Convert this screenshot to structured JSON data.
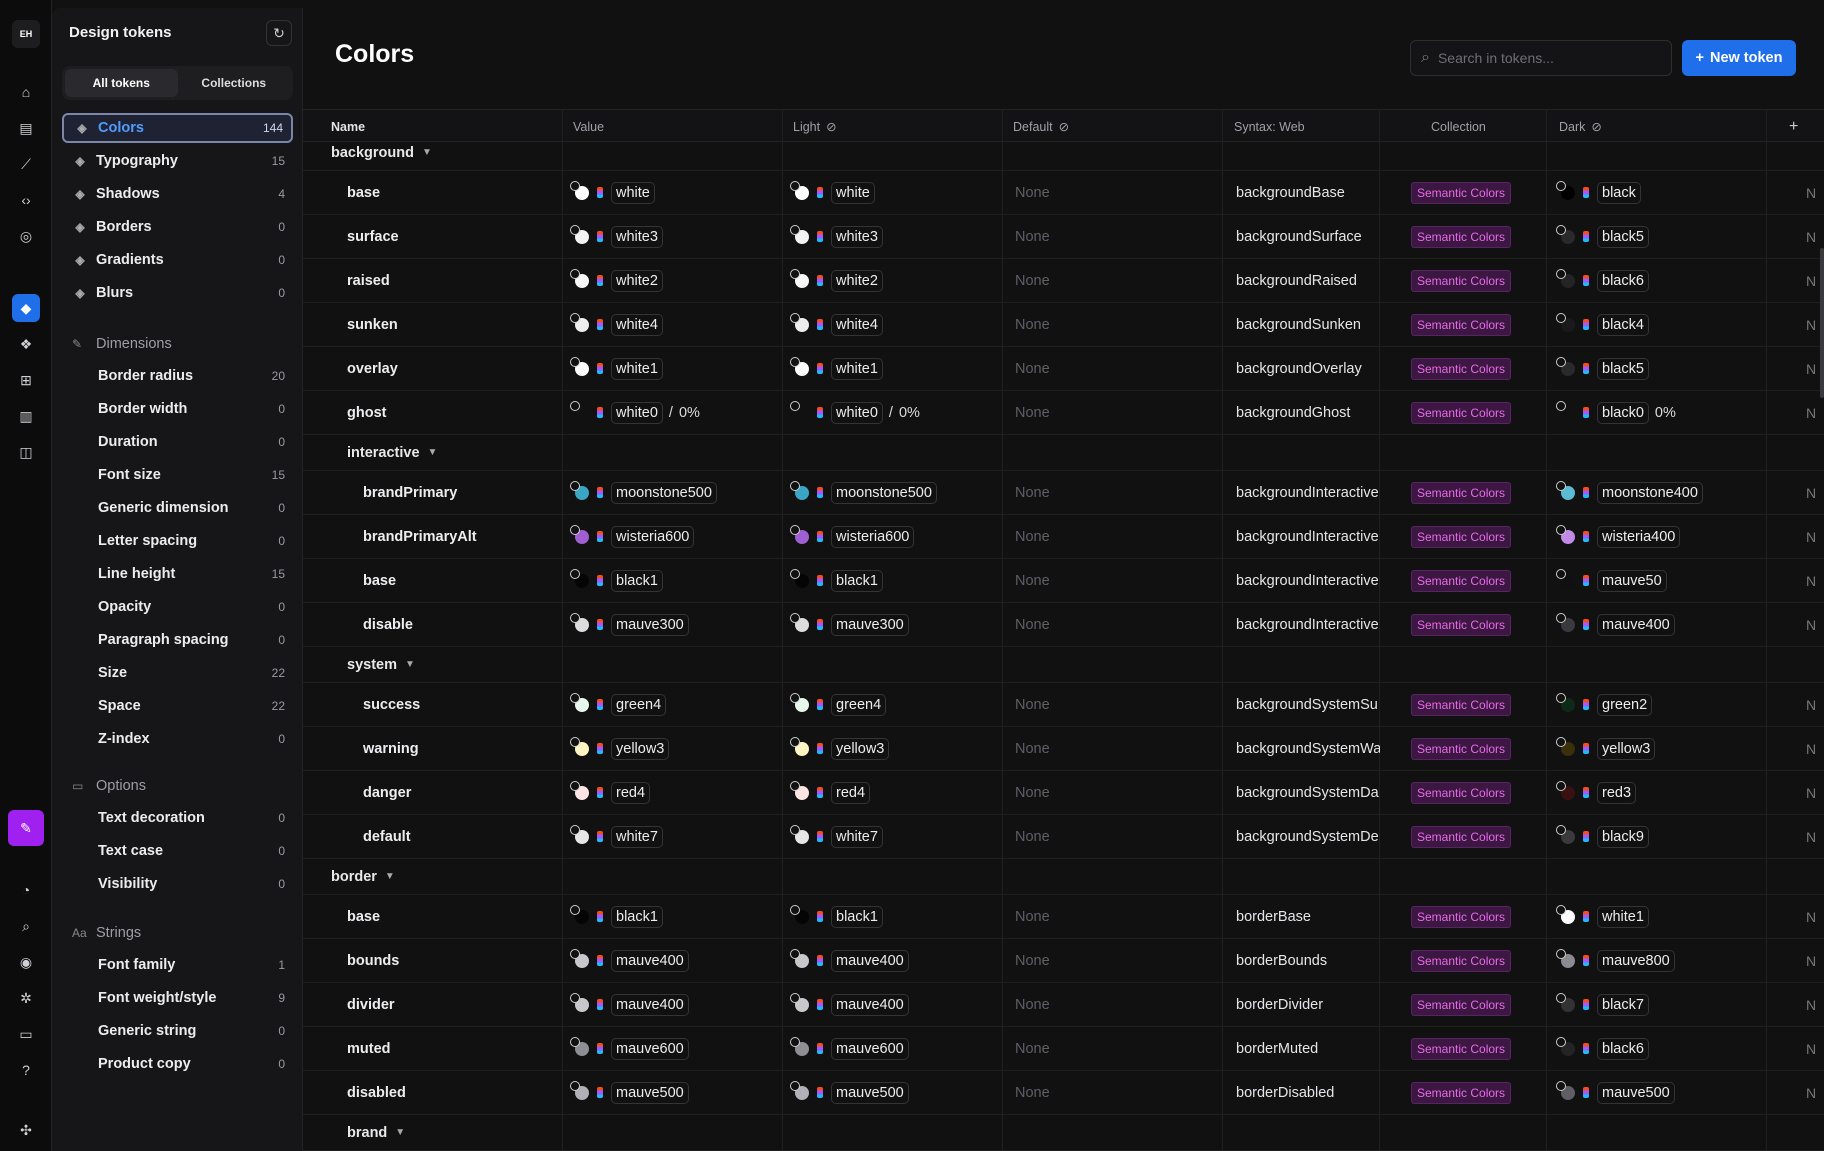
{
  "rail": {
    "avatar": "EH"
  },
  "sidebar": {
    "title": "Design tokens",
    "tabs": [
      "All tokens",
      "Collections"
    ],
    "categories": [
      {
        "label": "Colors",
        "count": "144",
        "icon": "palette-icon"
      },
      {
        "label": "Typography",
        "count": "15",
        "icon": "typography-icon"
      },
      {
        "label": "Shadows",
        "count": "4",
        "icon": "shadow-icon"
      },
      {
        "label": "Borders",
        "count": "0",
        "icon": "border-icon"
      },
      {
        "label": "Gradients",
        "count": "0",
        "icon": "gradient-icon"
      },
      {
        "label": "Blurs",
        "count": "0",
        "icon": "blur-icon"
      }
    ],
    "dimensions_label": "Dimensions",
    "dimensions": [
      {
        "label": "Border radius",
        "count": "20"
      },
      {
        "label": "Border width",
        "count": "0"
      },
      {
        "label": "Duration",
        "count": "0"
      },
      {
        "label": "Font size",
        "count": "15"
      },
      {
        "label": "Generic dimension",
        "count": "0"
      },
      {
        "label": "Letter spacing",
        "count": "0"
      },
      {
        "label": "Line height",
        "count": "15"
      },
      {
        "label": "Opacity",
        "count": "0"
      },
      {
        "label": "Paragraph spacing",
        "count": "0"
      },
      {
        "label": "Size",
        "count": "22"
      },
      {
        "label": "Space",
        "count": "22"
      },
      {
        "label": "Z-index",
        "count": "0"
      }
    ],
    "options_label": "Options",
    "options": [
      {
        "label": "Text decoration",
        "count": "0"
      },
      {
        "label": "Text case",
        "count": "0"
      },
      {
        "label": "Visibility",
        "count": "0"
      }
    ],
    "strings_label": "Strings",
    "strings": [
      {
        "label": "Font family",
        "count": "1"
      },
      {
        "label": "Font weight/style",
        "count": "9"
      },
      {
        "label": "Generic string",
        "count": "0"
      },
      {
        "label": "Product copy",
        "count": "0"
      }
    ]
  },
  "main": {
    "title": "Colors",
    "search_placeholder": "Search in tokens...",
    "new_token": "New token",
    "columns": [
      "Name",
      "Value",
      "Light",
      "Default",
      "Syntax: Web",
      "Collection",
      "Dark"
    ],
    "none_label": "None",
    "trail_label": "N",
    "collection_label": "Semantic Colors",
    "groups": {
      "background": "background",
      "interactive": "interactive",
      "system": "system",
      "border": "border",
      "brand": "brand"
    },
    "rows": [
      {
        "name": "base",
        "value": "white",
        "light": "white",
        "syntax": "backgroundBase",
        "dark": "black",
        "vc": "#ffffff",
        "dc": "#000000"
      },
      {
        "name": "surface",
        "value": "white3",
        "light": "white3",
        "syntax": "backgroundSurface",
        "dark": "black5",
        "vc": "#f3f3f3",
        "dc": "#2a2a2c"
      },
      {
        "name": "raised",
        "value": "white2",
        "light": "white2",
        "syntax": "backgroundRaised",
        "dark": "black6",
        "vc": "#f7f7f7",
        "dc": "#242426"
      },
      {
        "name": "sunken",
        "value": "white4",
        "light": "white4",
        "syntax": "backgroundSunken",
        "dark": "black4",
        "vc": "#eeeeee",
        "dc": "#1a1a1c"
      },
      {
        "name": "overlay",
        "value": "white1",
        "light": "white1",
        "syntax": "backgroundOverlay",
        "dark": "black5",
        "vc": "#fbfbfb",
        "dc": "#2a2a2c"
      },
      {
        "name": "ghost",
        "value": "white0",
        "light": "white0",
        "syntax": "backgroundGhost",
        "dark": "black0",
        "vc": "transparent",
        "dc": "transparent",
        "pct": "0%"
      },
      {
        "name": "brandPrimary",
        "value": "moonstone500",
        "light": "moonstone500",
        "syntax": "backgroundInteractive",
        "dark": "moonstone400",
        "vc": "#3aa5c4",
        "dc": "#5bbbd3"
      },
      {
        "name": "brandPrimaryAlt",
        "value": "wisteria600",
        "light": "wisteria600",
        "syntax": "backgroundInteractive",
        "dark": "wisteria400",
        "vc": "#a05fd0",
        "dc": "#c28ae6"
      },
      {
        "name": "base",
        "value": "black1",
        "light": "black1",
        "syntax": "backgroundInteractive",
        "dark": "mauve50",
        "vc": "#050505",
        "dc": "#101012"
      },
      {
        "name": "disable",
        "value": "mauve300",
        "light": "mauve300",
        "syntax": "backgroundInteractive",
        "dark": "mauve400",
        "vc": "#dcdcdf",
        "dc": "#3a3a3e"
      },
      {
        "name": "success",
        "value": "green4",
        "light": "green4",
        "syntax": "backgroundSystemSu",
        "dark": "green2",
        "vc": "#e8f7ec",
        "dc": "#0d2a18"
      },
      {
        "name": "warning",
        "value": "yellow3",
        "light": "yellow3",
        "syntax": "backgroundSystemWa",
        "dark": "yellow3",
        "vc": "#fff4c2",
        "dc": "#3a300c"
      },
      {
        "name": "danger",
        "value": "red4",
        "light": "red4",
        "syntax": "backgroundSystemDa",
        "dark": "red3",
        "vc": "#ffe4e4",
        "dc": "#3a1010"
      },
      {
        "name": "default",
        "value": "white7",
        "light": "white7",
        "syntax": "backgroundSystemDe",
        "dark": "black9",
        "vc": "#e6e6e6",
        "dc": "#3a3a3c"
      },
      {
        "name": "base",
        "value": "black1",
        "light": "black1",
        "syntax": "borderBase",
        "dark": "white1",
        "vc": "#050505",
        "dc": "#fbfbfb"
      },
      {
        "name": "bounds",
        "value": "mauve400",
        "light": "mauve400",
        "syntax": "borderBounds",
        "dark": "mauve800",
        "vc": "#c8c8cc",
        "dc": "#8a8a90"
      },
      {
        "name": "divider",
        "value": "mauve400",
        "light": "mauve400",
        "syntax": "borderDivider",
        "dark": "black7",
        "vc": "#c8c8cc",
        "dc": "#333336"
      },
      {
        "name": "muted",
        "value": "mauve600",
        "light": "mauve600",
        "syntax": "borderMuted",
        "dark": "black6",
        "vc": "#8e8e95",
        "dc": "#242426"
      },
      {
        "name": "disabled",
        "value": "mauve500",
        "light": "mauve500",
        "syntax": "borderDisabled",
        "dark": "mauve500",
        "vc": "#b0b0b6",
        "dc": "#5e5e64"
      }
    ]
  }
}
